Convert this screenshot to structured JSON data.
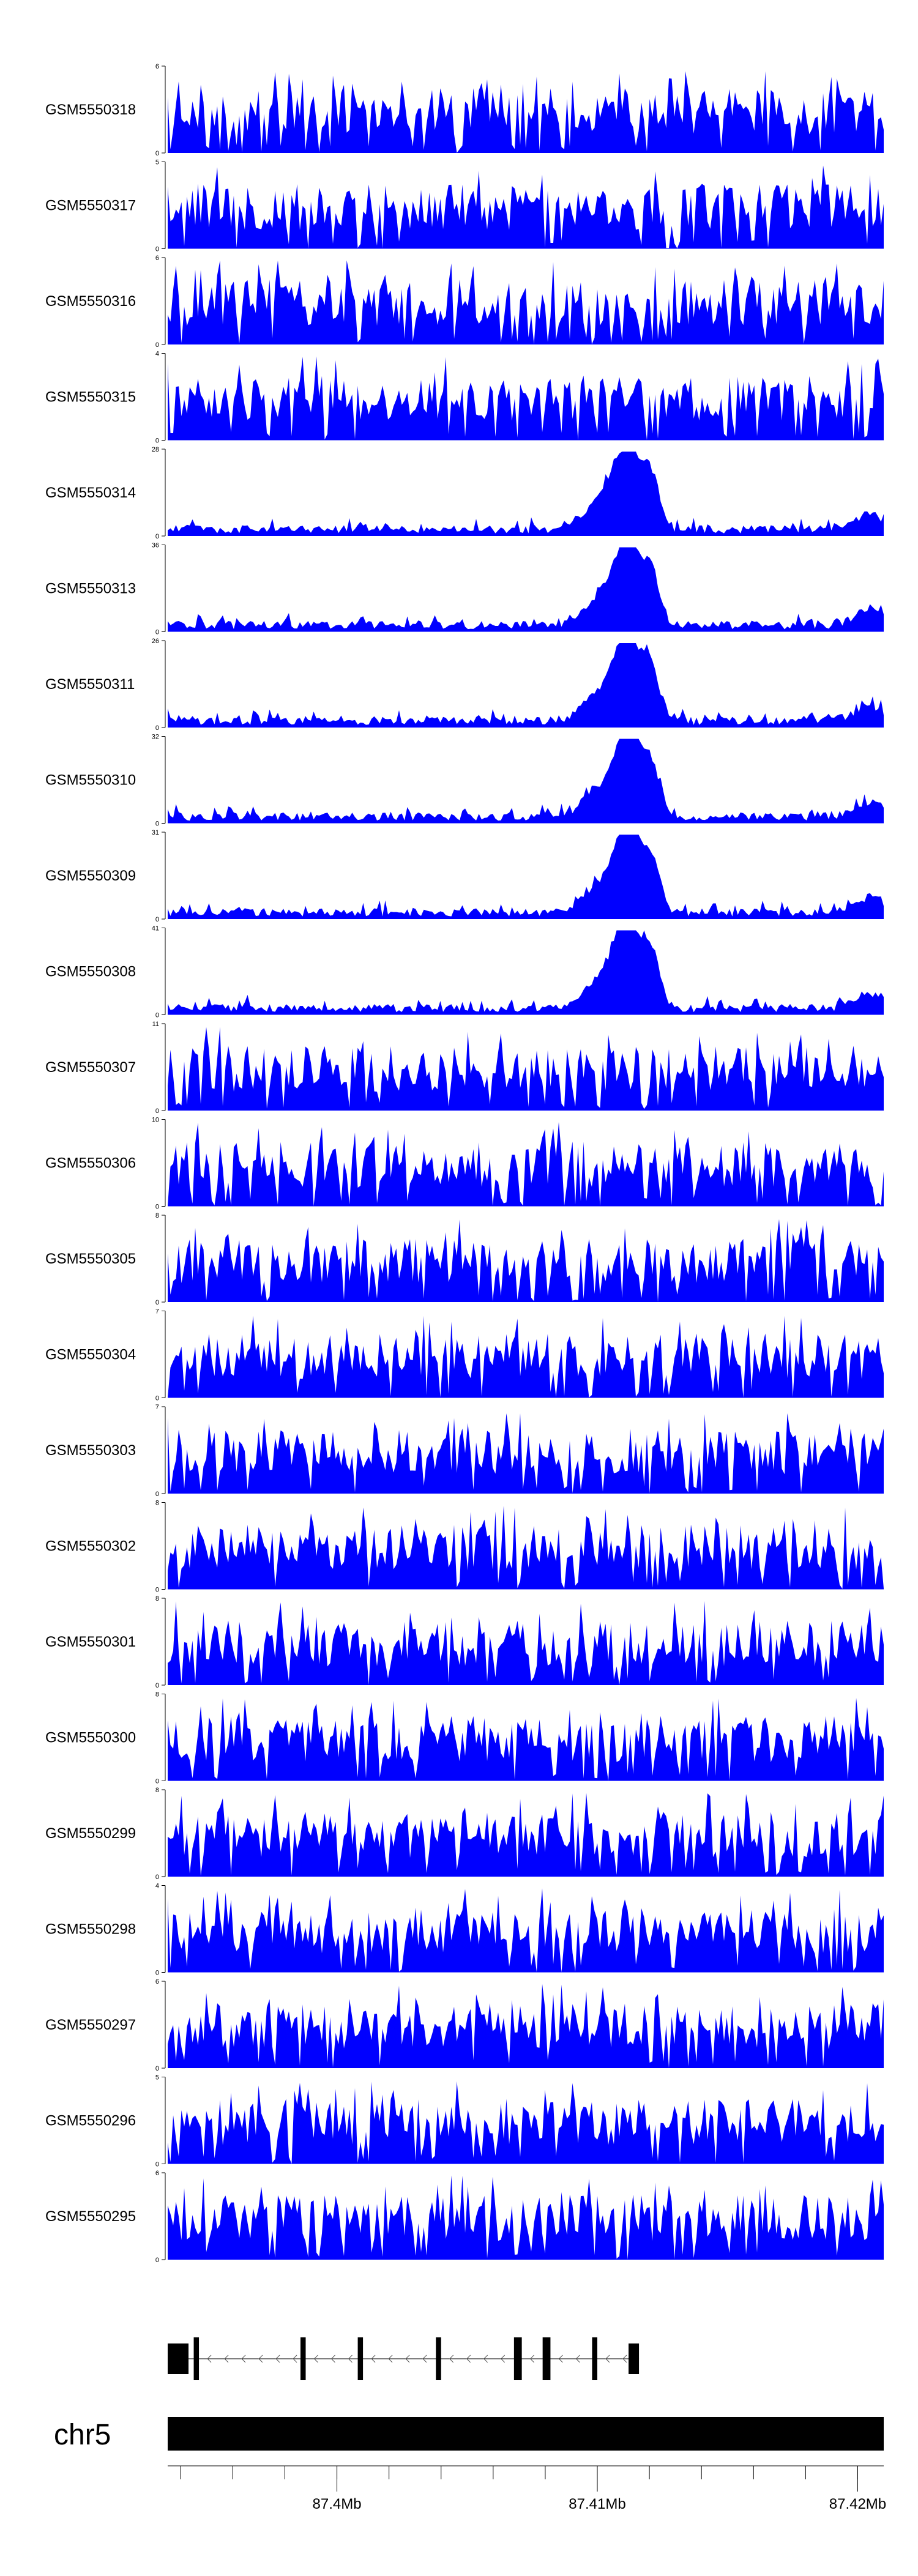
{
  "chart_data": {
    "type": "area",
    "color": "#0000ff",
    "region": {
      "chromosome": "chr5",
      "start_mb": 87.3935,
      "end_mb": 87.421,
      "ticks": [
        {
          "value": 87.4,
          "label": "87.4Mb"
        },
        {
          "value": 87.41,
          "label": "87.41Mb"
        },
        {
          "value": 87.42,
          "label": "87.42Mb"
        }
      ],
      "minor_tick_step_mb": 0.002
    },
    "peak_center_mb": 87.4112,
    "tracks": [
      {
        "name": "GSM5550318",
        "ymax": 6,
        "kind": "noise"
      },
      {
        "name": "GSM5550317",
        "ymax": 5,
        "kind": "noise"
      },
      {
        "name": "GSM5550316",
        "ymax": 6,
        "kind": "noise"
      },
      {
        "name": "GSM5550315",
        "ymax": 4,
        "kind": "noise"
      },
      {
        "name": "GSM5550314",
        "ymax": 28,
        "kind": "peak"
      },
      {
        "name": "GSM5550313",
        "ymax": 36,
        "kind": "peak"
      },
      {
        "name": "GSM5550311",
        "ymax": 26,
        "kind": "peak"
      },
      {
        "name": "GSM5550310",
        "ymax": 32,
        "kind": "peak"
      },
      {
        "name": "GSM5550309",
        "ymax": 31,
        "kind": "peak"
      },
      {
        "name": "GSM5550308",
        "ymax": 41,
        "kind": "peak"
      },
      {
        "name": "GSM5550307",
        "ymax": 11,
        "kind": "noise"
      },
      {
        "name": "GSM5550306",
        "ymax": 10,
        "kind": "noise"
      },
      {
        "name": "GSM5550305",
        "ymax": 8,
        "kind": "noise"
      },
      {
        "name": "GSM5550304",
        "ymax": 7,
        "kind": "noise"
      },
      {
        "name": "GSM5550303",
        "ymax": 7,
        "kind": "noise"
      },
      {
        "name": "GSM5550302",
        "ymax": 8,
        "kind": "noise"
      },
      {
        "name": "GSM5550301",
        "ymax": 8,
        "kind": "noise"
      },
      {
        "name": "GSM5550300",
        "ymax": 8,
        "kind": "noise"
      },
      {
        "name": "GSM5550299",
        "ymax": 8,
        "kind": "noise"
      },
      {
        "name": "GSM5550298",
        "ymax": 4,
        "kind": "noise"
      },
      {
        "name": "GSM5550297",
        "ymax": 6,
        "kind": "noise"
      },
      {
        "name": "GSM5550296",
        "ymax": 5,
        "kind": "noise"
      },
      {
        "name": "GSM5550295",
        "ymax": 6,
        "kind": "noise"
      }
    ],
    "gene": {
      "strand": "-",
      "exons": [
        {
          "start_mb": 87.3935,
          "end_mb": 87.3943
        },
        {
          "start_mb": 87.3945,
          "end_mb": 87.3947
        },
        {
          "start_mb": 87.3986,
          "end_mb": 87.3988
        },
        {
          "start_mb": 87.4008,
          "end_mb": 87.401
        },
        {
          "start_mb": 87.4038,
          "end_mb": 87.404
        },
        {
          "start_mb": 87.4068,
          "end_mb": 87.4071
        },
        {
          "start_mb": 87.4079,
          "end_mb": 87.4082
        },
        {
          "start_mb": 87.4098,
          "end_mb": 87.41
        },
        {
          "start_mb": 87.4112,
          "end_mb": 87.4116
        }
      ]
    }
  }
}
